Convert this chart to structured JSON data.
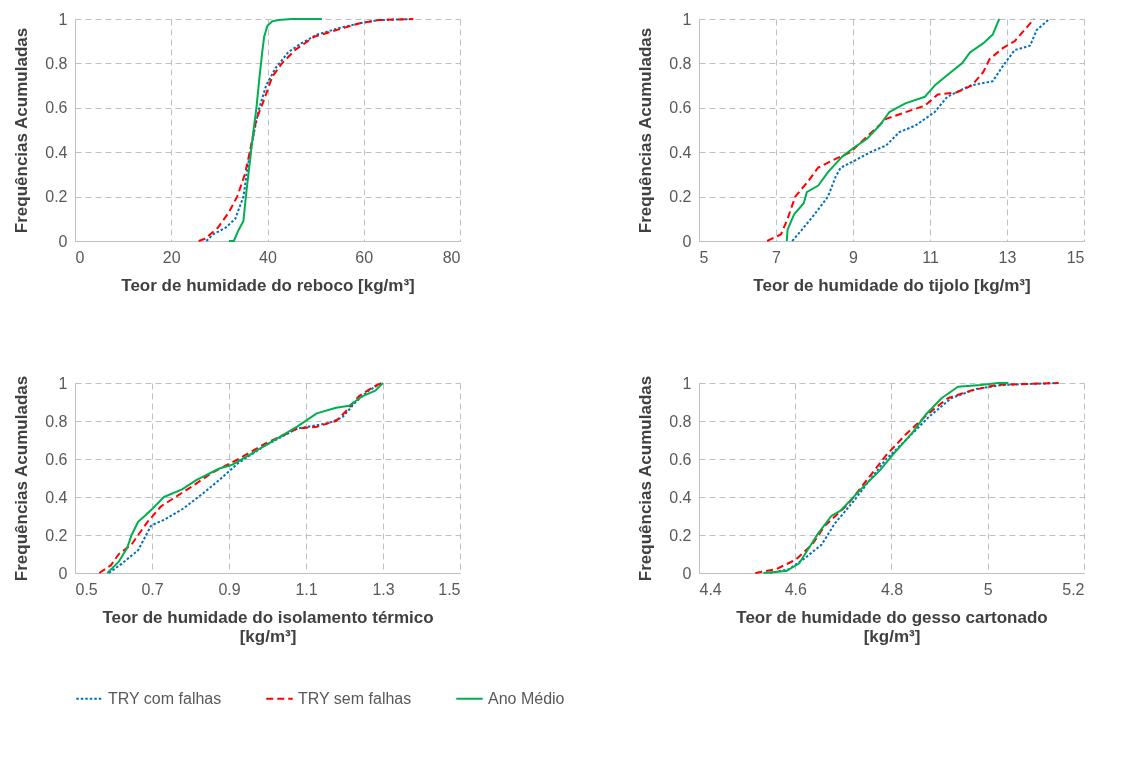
{
  "chart_data": [
    {
      "type": "line",
      "xlabel": "Teor de humidade do reboco [kg/m³]",
      "ylabel": "Frequências Acumuladas",
      "xlim": [
        0,
        80
      ],
      "xticks": [
        0,
        20,
        40,
        60,
        80
      ],
      "ylim": [
        0,
        1
      ],
      "yticks": [
        0,
        0.2,
        0.4,
        0.6,
        0.8,
        1
      ],
      "grid": true,
      "legend": "bottom",
      "series": [
        {
          "name": "TRY com falhas",
          "color": "#0070c0",
          "line_style": "dotted",
          "x": [
            27.3,
            28.7,
            31.3,
            33.3,
            35,
            36,
            37.3,
            38.3,
            39.7,
            41.7,
            44.3,
            47,
            50.3,
            55,
            59,
            63,
            70.3
          ],
          "values": [
            0,
            0.03,
            0.06,
            0.1,
            0.2,
            0.35,
            0.5,
            0.6,
            0.7,
            0.78,
            0.85,
            0.89,
            0.93,
            0.96,
            0.98,
            0.995,
            1
          ]
        },
        {
          "name": "TRY sem falhas",
          "color": "#ff0000",
          "line_style": "dashed",
          "x": [
            25.7,
            27,
            29.7,
            32,
            33.7,
            35.3,
            36.3,
            37.7,
            39,
            41,
            43,
            45.7,
            49.7,
            54.3,
            59,
            63,
            70.3
          ],
          "values": [
            0,
            0.01,
            0.06,
            0.13,
            0.2,
            0.3,
            0.4,
            0.55,
            0.62,
            0.74,
            0.8,
            0.86,
            0.92,
            0.95,
            0.98,
            0.995,
            1
          ]
        },
        {
          "name": "Ano Médio",
          "color": "#00b050",
          "line_style": "solid",
          "x": [
            32,
            33,
            34,
            35,
            35.5,
            36.3,
            37.1,
            37.7,
            38.3,
            38.9,
            39.3,
            40,
            41,
            42.3,
            45,
            51.3
          ],
          "values": [
            0,
            0,
            0.05,
            0.09,
            0.2,
            0.35,
            0.5,
            0.6,
            0.73,
            0.85,
            0.92,
            0.97,
            0.99,
            0.995,
            1,
            1
          ]
        }
      ]
    },
    {
      "type": "line",
      "xlabel": "Teor de humidade do tijolo [kg/m³]",
      "ylabel": "Frequências Acumuladas",
      "xlim": [
        5,
        15
      ],
      "xticks": [
        5,
        7,
        9,
        11,
        13,
        15
      ],
      "ylim": [
        0,
        1
      ],
      "yticks": [
        0,
        0.2,
        0.4,
        0.6,
        0.8,
        1
      ],
      "grid": true,
      "legend": "bottom",
      "series": [
        {
          "name": "TRY com falhas",
          "color": "#0070c0",
          "line_style": "dotted",
          "x": [
            7.42,
            7.67,
            8.0,
            8.35,
            8.55,
            8.68,
            9.02,
            9.45,
            9.86,
            10.2,
            10.62,
            11.12,
            11.45,
            12.04,
            12.63,
            12.9,
            13.2,
            13.6,
            13.77,
            14.1
          ],
          "values": [
            0,
            0.05,
            0.12,
            0.2,
            0.29,
            0.33,
            0.36,
            0.4,
            0.43,
            0.49,
            0.52,
            0.58,
            0.65,
            0.7,
            0.72,
            0.79,
            0.86,
            0.88,
            0.95,
            1
          ]
        },
        {
          "name": "TRY sem falhas",
          "color": "#ff0000",
          "line_style": "dashed",
          "x": [
            6.77,
            7.13,
            7.3,
            7.5,
            7.84,
            8.09,
            8.43,
            8.93,
            9.36,
            9.86,
            10.36,
            10.87,
            11.2,
            11.7,
            12.08,
            12.38,
            12.55,
            12.9,
            13.2,
            13.45,
            13.7
          ],
          "values": [
            0,
            0.03,
            0.1,
            0.2,
            0.27,
            0.33,
            0.36,
            0.4,
            0.47,
            0.55,
            0.58,
            0.61,
            0.66,
            0.67,
            0.7,
            0.76,
            0.82,
            0.87,
            0.9,
            0.95,
            1
          ]
        },
        {
          "name": "Ano Médio",
          "color": "#00b050",
          "line_style": "solid",
          "x": [
            7.28,
            7.3,
            7.47,
            7.72,
            7.8,
            8.1,
            8.35,
            8.72,
            9.02,
            9.36,
            9.69,
            9.94,
            10.36,
            10.87,
            11.12,
            11.54,
            11.83,
            12.04,
            12.38,
            12.63,
            12.75,
            12.8
          ],
          "values": [
            0,
            0.05,
            0.12,
            0.17,
            0.22,
            0.25,
            0.31,
            0.38,
            0.42,
            0.46,
            0.52,
            0.58,
            0.62,
            0.65,
            0.7,
            0.76,
            0.8,
            0.85,
            0.89,
            0.93,
            0.98,
            1
          ]
        }
      ]
    },
    {
      "type": "line",
      "xlabel": "Teor de humidade do isolamento térmico [kg/m³]",
      "ylabel": "Frequências Acumuladas",
      "xlim": [
        0.5,
        1.5
      ],
      "xticks": [
        0.5,
        0.7,
        0.9,
        1.1,
        1.3,
        1.5
      ],
      "ylim": [
        0,
        1
      ],
      "yticks": [
        0,
        0.2,
        0.4,
        0.6,
        0.8,
        1
      ],
      "grid": true,
      "legend": "bottom",
      "series": [
        {
          "name": "TRY com falhas",
          "color": "#0070c0",
          "line_style": "dotted",
          "x": [
            0.588,
            0.622,
            0.664,
            0.698,
            0.731,
            0.782,
            0.833,
            0.875,
            0.925,
            0.993,
            1.077,
            1.161,
            1.195,
            1.229,
            1.263,
            1.296
          ],
          "values": [
            0,
            0.05,
            0.12,
            0.25,
            0.28,
            0.34,
            0.42,
            0.49,
            0.58,
            0.67,
            0.76,
            0.79,
            0.82,
            0.9,
            0.96,
            1
          ]
        },
        {
          "name": "TRY sem falhas",
          "color": "#ff0000",
          "line_style": "dashed",
          "x": [
            0.563,
            0.593,
            0.614,
            0.647,
            0.664,
            0.689,
            0.723,
            0.807,
            0.858,
            0.925,
            0.993,
            1.077,
            1.128,
            1.178,
            1.203,
            1.237,
            1.275,
            1.296
          ],
          "values": [
            0,
            0.04,
            0.1,
            0.15,
            0.2,
            0.27,
            0.35,
            0.46,
            0.53,
            0.6,
            0.68,
            0.76,
            0.77,
            0.8,
            0.85,
            0.93,
            0.98,
            1
          ]
        },
        {
          "name": "Ano Médio",
          "color": "#00b050",
          "line_style": "solid",
          "x": [
            0.584,
            0.614,
            0.635,
            0.647,
            0.664,
            0.681,
            0.702,
            0.731,
            0.778,
            0.816,
            0.875,
            0.909,
            0.96,
            1.01,
            1.077,
            1.128,
            1.178,
            1.212,
            1.246,
            1.28,
            1.3
          ],
          "values": [
            0,
            0.06,
            0.13,
            0.2,
            0.27,
            0.3,
            0.34,
            0.4,
            0.44,
            0.49,
            0.55,
            0.57,
            0.63,
            0.69,
            0.77,
            0.84,
            0.87,
            0.88,
            0.93,
            0.96,
            1
          ]
        }
      ]
    },
    {
      "type": "line",
      "xlabel": "Teor de humidade do gesso cartonado [kg/m³]",
      "ylabel": "Frequências Acumuladas",
      "xlim": [
        4.4,
        5.2
      ],
      "xticks": [
        4.4,
        4.6,
        4.8,
        5,
        5.2
      ],
      "ylim": [
        0,
        1
      ],
      "yticks": [
        0,
        0.2,
        0.4,
        0.6,
        0.8,
        1
      ],
      "grid": true,
      "legend": "bottom",
      "series": [
        {
          "name": "TRY com falhas",
          "color": "#0070c0",
          "line_style": "dotted",
          "x": [
            4.547,
            4.587,
            4.621,
            4.655,
            4.682,
            4.722,
            4.749,
            4.789,
            4.83,
            4.877,
            4.924,
            4.978,
            5.032,
            5.086,
            5.147
          ],
          "values": [
            0,
            0.02,
            0.08,
            0.15,
            0.26,
            0.38,
            0.47,
            0.6,
            0.7,
            0.82,
            0.92,
            0.97,
            0.99,
            0.995,
            1
          ]
        },
        {
          "name": "TRY sem falhas",
          "color": "#ff0000",
          "line_style": "dashed",
          "x": [
            4.517,
            4.56,
            4.601,
            4.635,
            4.662,
            4.709,
            4.749,
            4.789,
            4.83,
            4.877,
            4.917,
            4.965,
            5.019,
            5.08,
            5.147
          ],
          "values": [
            0,
            0.02,
            0.07,
            0.15,
            0.25,
            0.36,
            0.49,
            0.62,
            0.73,
            0.84,
            0.92,
            0.96,
            0.99,
            0.995,
            1
          ]
        },
        {
          "name": "Ano Médio",
          "color": "#00b050",
          "line_style": "solid",
          "x": [
            4.534,
            4.581,
            4.608,
            4.628,
            4.648,
            4.675,
            4.695,
            4.736,
            4.776,
            4.802,
            4.844,
            4.87,
            4.904,
            4.938,
            4.985,
            5.022,
            5.043
          ],
          "values": [
            0,
            0.01,
            0.05,
            0.13,
            0.21,
            0.3,
            0.33,
            0.44,
            0.54,
            0.62,
            0.74,
            0.83,
            0.92,
            0.98,
            0.99,
            1,
            1
          ]
        }
      ]
    }
  ]
}
